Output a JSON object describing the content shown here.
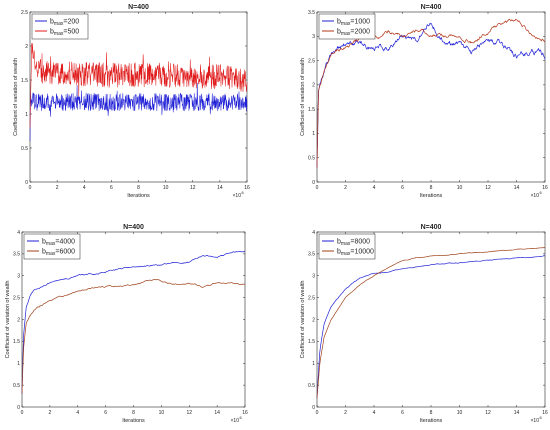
{
  "chart_data": [
    {
      "type": "line",
      "title": "N=400",
      "xlabel": "Iterations",
      "ylabel": "Coefficient of variation of wealth",
      "x_multiplier_label": "×10",
      "x_multiplier_exp": "6",
      "xlim": [
        0,
        16
      ],
      "ylim": [
        0,
        2.5
      ],
      "xticks": [
        "0",
        "2",
        "4",
        "6",
        "8",
        "10",
        "12",
        "14",
        "16"
      ],
      "yticks": [
        "0",
        "0.5",
        "1",
        "1.5",
        "2",
        "2.5"
      ],
      "legend_position": "top-left",
      "series": [
        {
          "name": "b",
          "name_sub": "max",
          "name_suffix": "=200",
          "color": "#1f1fd6",
          "style": "noisy",
          "noise": 0.13,
          "points": [
            [
              0,
              0.6
            ],
            [
              0.05,
              1.2
            ],
            [
              0.3,
              1.18
            ],
            [
              2,
              1.17
            ],
            [
              4,
              1.18
            ],
            [
              6,
              1.17
            ],
            [
              8,
              1.18
            ],
            [
              10,
              1.17
            ],
            [
              12,
              1.18
            ],
            [
              14,
              1.17
            ],
            [
              16,
              1.17
            ]
          ]
        },
        {
          "name": "b",
          "name_sub": "max",
          "name_suffix": "=500",
          "color": "#e01a1a",
          "style": "noisy",
          "noise": 0.18,
          "points": [
            [
              0,
              0.8
            ],
            [
              0.1,
              1.9
            ],
            [
              0.5,
              1.7
            ],
            [
              1,
              1.6
            ],
            [
              3,
              1.6
            ],
            [
              6,
              1.57
            ],
            [
              9,
              1.58
            ],
            [
              12,
              1.55
            ],
            [
              14,
              1.55
            ],
            [
              16,
              1.5
            ]
          ]
        }
      ]
    },
    {
      "type": "line",
      "title": "N=400",
      "xlabel": "Iterations",
      "ylabel": "Coefficient of variation of wealth",
      "x_multiplier_label": "×10",
      "x_multiplier_exp": "6",
      "xlim": [
        0,
        16
      ],
      "ylim": [
        0,
        3.5
      ],
      "xticks": [
        "0",
        "2",
        "4",
        "6",
        "8",
        "10",
        "12",
        "14",
        "16"
      ],
      "yticks": [
        "0",
        "0.5",
        "1",
        "1.5",
        "2",
        "2.5",
        "3",
        "3.5"
      ],
      "legend_position": "top-left",
      "series": [
        {
          "name": "b",
          "name_sub": "max",
          "name_suffix": "=1000",
          "color": "#1f1fd6",
          "style": "wiggly",
          "noise": 0.08,
          "points": [
            [
              0,
              0.3
            ],
            [
              0.1,
              1.9
            ],
            [
              0.5,
              2.3
            ],
            [
              1,
              2.6
            ],
            [
              2,
              2.85
            ],
            [
              3,
              2.9
            ],
            [
              4,
              2.75
            ],
            [
              5,
              2.8
            ],
            [
              6,
              3.0
            ],
            [
              7,
              2.9
            ],
            [
              8,
              3.3
            ],
            [
              9,
              2.8
            ],
            [
              10,
              2.9
            ],
            [
              11,
              2.7
            ],
            [
              12,
              2.9
            ],
            [
              13,
              2.8
            ],
            [
              14,
              2.6
            ],
            [
              15,
              2.7
            ],
            [
              16,
              2.6
            ]
          ]
        },
        {
          "name": "b",
          "name_sub": "max",
          "name_suffix": "=2000",
          "color": "#b5361a",
          "style": "wiggly",
          "noise": 0.05,
          "points": [
            [
              0,
              0.3
            ],
            [
              0.1,
              1.9
            ],
            [
              0.5,
              2.3
            ],
            [
              1,
              2.6
            ],
            [
              2,
              2.8
            ],
            [
              3,
              2.95
            ],
            [
              4,
              2.95
            ],
            [
              5,
              3.1
            ],
            [
              6,
              3.0
            ],
            [
              7,
              3.15
            ],
            [
              8,
              3.05
            ],
            [
              9,
              3.0
            ],
            [
              10,
              3.0
            ],
            [
              11,
              2.85
            ],
            [
              12,
              3.1
            ],
            [
              13,
              3.3
            ],
            [
              14,
              3.35
            ],
            [
              15,
              3.1
            ],
            [
              16,
              2.9
            ]
          ]
        }
      ]
    },
    {
      "type": "line",
      "title": "N=400",
      "xlabel": "Iterations",
      "ylabel": "Coefficient of variation of wealth",
      "x_multiplier_label": "×10",
      "x_multiplier_exp": "6",
      "xlim": [
        0,
        16
      ],
      "ylim": [
        0,
        4
      ],
      "xticks": [
        "0",
        "2",
        "4",
        "6",
        "8",
        "10",
        "12",
        "14",
        "16"
      ],
      "yticks": [
        "0",
        "0.5",
        "1",
        "1.5",
        "2",
        "2.5",
        "3",
        "3.5",
        "4"
      ],
      "legend_position": "top-left",
      "series": [
        {
          "name": "b",
          "name_sub": "max",
          "name_suffix": "=4000",
          "color": "#1f1fd6",
          "style": "smooth",
          "noise": 0.025,
          "points": [
            [
              0,
              0.3
            ],
            [
              0.1,
              1.6
            ],
            [
              0.3,
              2.3
            ],
            [
              0.6,
              2.55
            ],
            [
              1,
              2.7
            ],
            [
              2,
              2.85
            ],
            [
              4,
              3.0
            ],
            [
              6,
              3.1
            ],
            [
              8,
              3.2
            ],
            [
              10,
              3.25
            ],
            [
              12,
              3.3
            ],
            [
              13,
              3.45
            ],
            [
              14,
              3.45
            ],
            [
              15,
              3.55
            ],
            [
              16,
              3.55
            ]
          ]
        },
        {
          "name": "b",
          "name_sub": "max",
          "name_suffix": "=6000",
          "color": "#a0401a",
          "style": "smooth",
          "noise": 0.025,
          "points": [
            [
              0,
              0.3
            ],
            [
              0.1,
              1.3
            ],
            [
              0.3,
              1.9
            ],
            [
              0.6,
              2.1
            ],
            [
              1,
              2.25
            ],
            [
              2,
              2.45
            ],
            [
              4,
              2.65
            ],
            [
              6,
              2.75
            ],
            [
              8,
              2.8
            ],
            [
              9.5,
              2.9
            ],
            [
              11,
              2.8
            ],
            [
              12,
              2.85
            ],
            [
              13,
              2.75
            ],
            [
              14,
              2.85
            ],
            [
              16,
              2.8
            ]
          ]
        }
      ]
    },
    {
      "type": "line",
      "title": "N=400",
      "xlabel": "Iterations",
      "ylabel": "Coefficient of variation of wealth",
      "x_multiplier_label": "×10",
      "x_multiplier_exp": "6",
      "xlim": [
        0,
        16
      ],
      "ylim": [
        0,
        4
      ],
      "xticks": [
        "0",
        "2",
        "4",
        "6",
        "8",
        "10",
        "12",
        "14",
        "16"
      ],
      "yticks": [
        "0",
        "0.5",
        "1",
        "1.5",
        "2",
        "2.5",
        "3",
        "3.5",
        "4"
      ],
      "legend_position": "top-left",
      "series": [
        {
          "name": "b",
          "name_sub": "max",
          "name_suffix": "=8000",
          "color": "#1f1fd6",
          "style": "smooth",
          "noise": 0.012,
          "points": [
            [
              0,
              0.2
            ],
            [
              0.2,
              1.3
            ],
            [
              0.5,
              1.9
            ],
            [
              1,
              2.3
            ],
            [
              2,
              2.7
            ],
            [
              3,
              2.95
            ],
            [
              4,
              3.05
            ],
            [
              6,
              3.15
            ],
            [
              8,
              3.25
            ],
            [
              10,
              3.3
            ],
            [
              12,
              3.35
            ],
            [
              14,
              3.4
            ],
            [
              16,
              3.45
            ]
          ]
        },
        {
          "name": "b",
          "name_sub": "max",
          "name_suffix": "=10000",
          "color": "#a0401a",
          "style": "smooth",
          "noise": 0.01,
          "points": [
            [
              0,
              0.2
            ],
            [
              0.2,
              1.0
            ],
            [
              0.5,
              1.6
            ],
            [
              1,
              2.0
            ],
            [
              2,
              2.5
            ],
            [
              3,
              2.8
            ],
            [
              4,
              3.0
            ],
            [
              5,
              3.2
            ],
            [
              6,
              3.35
            ],
            [
              8,
              3.45
            ],
            [
              10,
              3.5
            ],
            [
              12,
              3.55
            ],
            [
              14,
              3.6
            ],
            [
              16,
              3.65
            ]
          ]
        }
      ]
    }
  ]
}
